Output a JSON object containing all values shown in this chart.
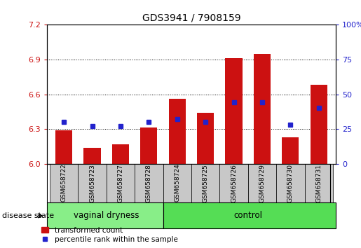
{
  "title": "GDS3941 / 7908159",
  "samples": [
    "GSM658722",
    "GSM658723",
    "GSM658727",
    "GSM658728",
    "GSM658724",
    "GSM658725",
    "GSM658726",
    "GSM658729",
    "GSM658730",
    "GSM658731"
  ],
  "groups": [
    "vaginal dryness",
    "vaginal dryness",
    "vaginal dryness",
    "vaginal dryness",
    "control",
    "control",
    "control",
    "control",
    "control",
    "control"
  ],
  "transformed_count": [
    6.29,
    6.14,
    6.17,
    6.31,
    6.56,
    6.44,
    6.91,
    6.95,
    6.23,
    6.68
  ],
  "percentile_rank": [
    30,
    27,
    27,
    30,
    32,
    30,
    44,
    44,
    28,
    40
  ],
  "ylim": [
    6.0,
    7.2
  ],
  "yticks_left": [
    6.0,
    6.3,
    6.6,
    6.9,
    7.2
  ],
  "yticks_right": [
    0,
    25,
    50,
    75,
    100
  ],
  "bar_color": "#cc1111",
  "dot_color": "#2222cc",
  "vaginal_count": 4,
  "legend_bar_label": "transformed count",
  "legend_dot_label": "percentile rank within the sample",
  "group_label": "disease state",
  "bar_bottom": 6.0,
  "bar_width": 0.6,
  "figsize": [
    5.15,
    3.54
  ],
  "dpi": 100
}
